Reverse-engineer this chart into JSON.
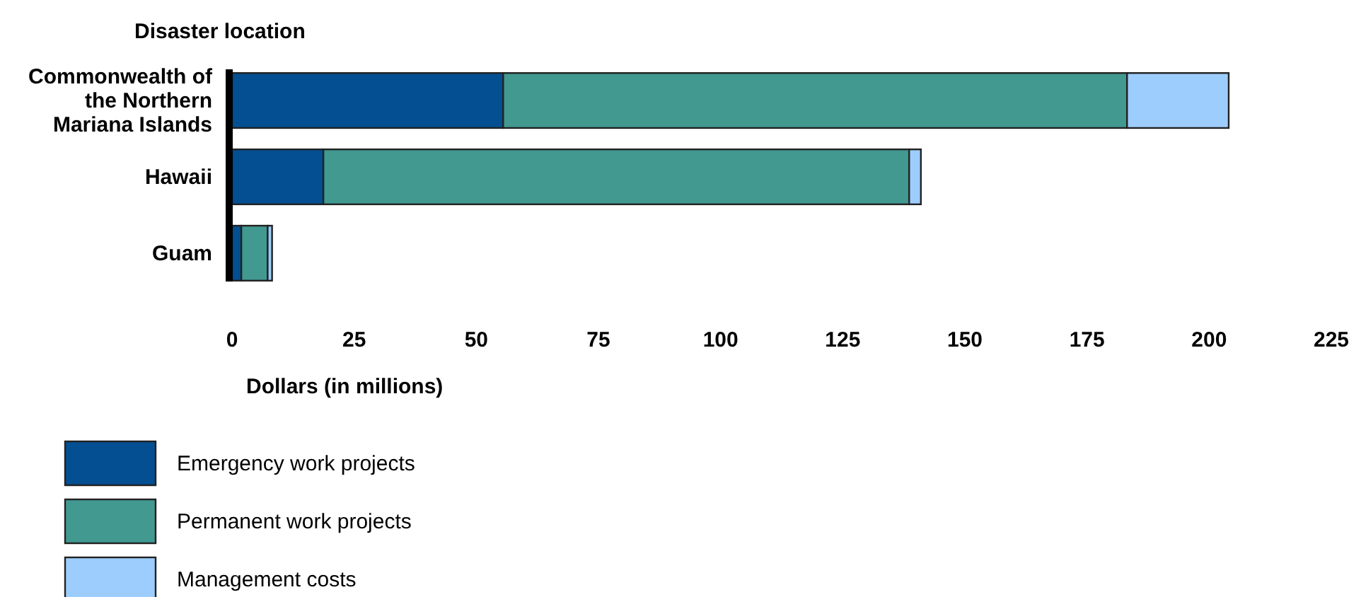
{
  "chart_data": {
    "type": "bar",
    "orientation": "horizontal",
    "stacked": true,
    "title": "Disaster location",
    "xlabel": "Dollars (in millions)",
    "categories": [
      "Commonwealth of the Northern Mariana Islands",
      "Hawaii",
      "Guam"
    ],
    "series": [
      {
        "name": "Emergency work projects",
        "color": "#044f91",
        "values": [
          55.5,
          18.7,
          1.9
        ]
      },
      {
        "name": "Permanent work projects",
        "color": "#419990",
        "values": [
          127.7,
          119.9,
          5.4
        ]
      },
      {
        "name": "Management costs",
        "color": "#9dcdfc",
        "values": [
          20.8,
          2.4,
          0.9
        ]
      }
    ],
    "xlim": [
      0,
      225
    ],
    "xticks": [
      0,
      25,
      50,
      75,
      100,
      125,
      150,
      175,
      200,
      225
    ],
    "grid": false,
    "legend": "bottom"
  }
}
